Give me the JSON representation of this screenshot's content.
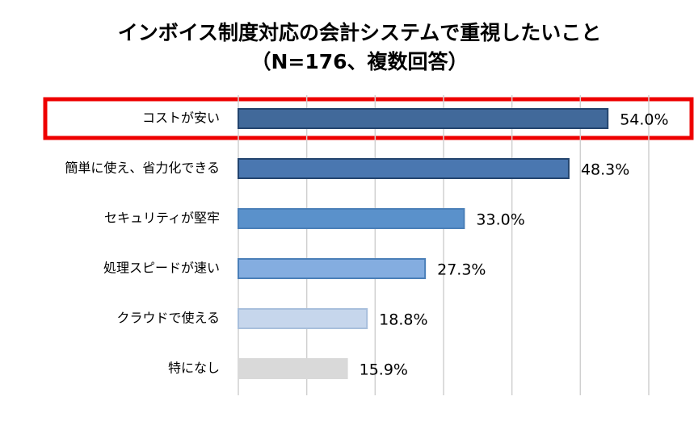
{
  "chart_data": {
    "type": "bar",
    "orientation": "horizontal",
    "title": "インボイス制度対応の会計システムで重視したいこと",
    "subtitle": "（N=176、複数回答）",
    "categories": [
      "コストが安い",
      "簡単に使え、省力化できる",
      "セキュリティが堅牢",
      "処理スピードが速い",
      "クラウドで使える",
      "特になし"
    ],
    "values": [
      54.0,
      48.3,
      33.0,
      27.3,
      18.8,
      15.9
    ],
    "value_labels": [
      "54.0%",
      "48.3%",
      "33.0%",
      "27.3%",
      "18.8%",
      "15.9%"
    ],
    "colors": [
      "#41699a",
      "#4a77b0",
      "#5a91cb",
      "#84ade0",
      "#c6d6ec",
      "#d9d9d9"
    ],
    "xlim": [
      0,
      60
    ],
    "xticks": [
      0,
      10,
      20,
      30,
      40,
      50,
      60
    ],
    "grid": true
  }
}
